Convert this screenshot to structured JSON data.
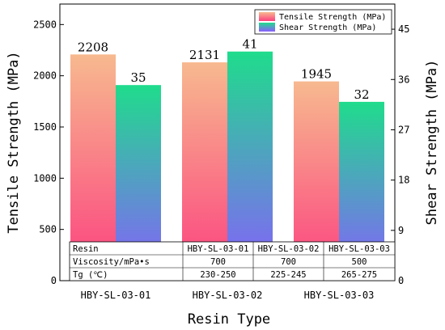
{
  "chart_data": {
    "type": "bar",
    "categories": [
      "HBY-SL-03-01",
      "HBY-SL-03-02",
      "HBY-SL-03-03"
    ],
    "xlabel": "Resin Type",
    "ylabel": "Tensile Strength (MPa)",
    "ylabel_right": "Shear Strength (MPa)",
    "ylim": [
      0,
      2700
    ],
    "ylim_right": [
      0,
      49.5
    ],
    "yticks": [
      0,
      500,
      1000,
      1500,
      2000,
      2500
    ],
    "yticks_right": [
      0,
      9,
      18,
      27,
      36,
      45
    ],
    "grid": false,
    "legend_position": "top-right",
    "series": [
      {
        "name": "Tensile Strength (MPa)",
        "axis": "left",
        "values": [
          2208,
          2131,
          1945
        ],
        "labels": [
          "2208",
          "2131",
          "1945"
        ],
        "gradient": [
          "#f7b98f",
          "#fc3f7f"
        ]
      },
      {
        "name": "Shear Strength (MPa)",
        "axis": "right",
        "values": [
          35,
          41,
          32
        ],
        "labels": [
          "35",
          "41",
          "32"
        ],
        "gradient": [
          "#1fdc8c",
          "#8a5cff"
        ]
      }
    ],
    "table": {
      "rows": [
        [
          "Resin",
          "HBY-SL-03-01",
          "HBY-SL-03-02",
          "HBY-SL-03-03"
        ],
        [
          "Viscosity/mPa•s",
          "700",
          "700",
          "500"
        ],
        [
          "Tg (℃)",
          "230-250",
          "225-245",
          "265-275"
        ]
      ]
    }
  }
}
